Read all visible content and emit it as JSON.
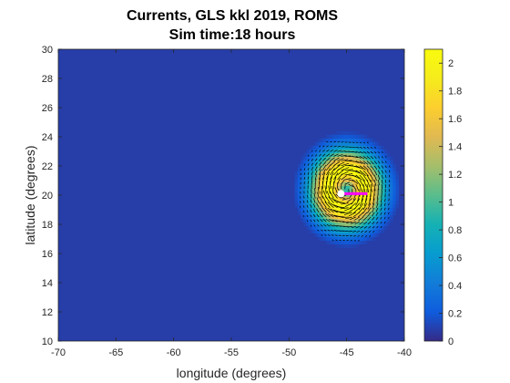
{
  "chart_data": {
    "type": "heatmap",
    "title_line1": "Currents, GLS kkl 2019, ROMS",
    "title_line2": "Sim time:18 hours",
    "xlabel": "longitude (degrees)",
    "ylabel": "latitude (degrees)",
    "xlim": [
      -70,
      -40
    ],
    "ylim": [
      10,
      30
    ],
    "xticks": [
      -70,
      -65,
      -60,
      -55,
      -50,
      -45,
      -40
    ],
    "yticks": [
      10,
      12,
      14,
      16,
      18,
      20,
      22,
      24,
      26,
      28,
      30
    ],
    "colorbar": {
      "colormap": "parula",
      "clim": [
        0,
        2.1
      ],
      "ticks": [
        0,
        0.2,
        0.4,
        0.6,
        0.8,
        1,
        1.2,
        1.4,
        1.6,
        1.8,
        2
      ]
    },
    "background_speed": 0.08,
    "eddy": {
      "center": [
        -45,
        20.4
      ],
      "peak_speed": 2.1,
      "core_radius_deg": 1.2,
      "outer_radius_deg": 3.5
    },
    "markers": {
      "storm_center": [
        -45.5,
        20.1
      ],
      "track": [
        [
          -45.5,
          20.1
        ],
        [
          -43.2,
          20.1
        ]
      ],
      "track_color": "#ff00ff",
      "center_color": "#ffffff"
    },
    "grid": false,
    "legend": "colorbar-right"
  }
}
